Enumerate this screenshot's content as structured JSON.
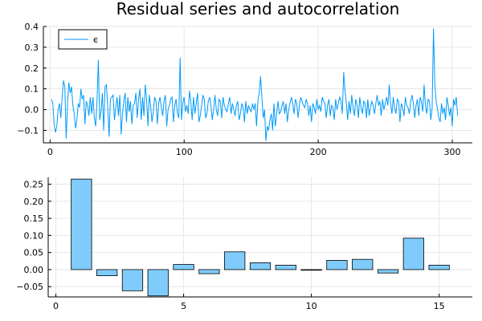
{
  "title": "Residual series and autocorrelation",
  "chart_data": [
    {
      "type": "line",
      "title": "Residual series and autocorrelation",
      "xlabel": "",
      "ylabel": "",
      "xlim": [
        -5,
        315
      ],
      "ylim": [
        -0.16,
        0.4
      ],
      "xticks": [
        0,
        100,
        200,
        300
      ],
      "xtick_labels": [
        "0",
        "100",
        "200",
        "300"
      ],
      "yticks": [
        -0.1,
        0.0,
        0.1,
        0.2,
        0.3,
        0.4
      ],
      "ytick_labels": [
        "−0.1",
        "0.0",
        "0.1",
        "0.2",
        "0.3",
        "0.4"
      ],
      "grid": true,
      "legend_position": "top-left",
      "series": [
        {
          "name": "ϵ",
          "color": "#009af9",
          "x_start": 1,
          "x_step": 1,
          "values": [
            0.05,
            0.03,
            -0.07,
            -0.11,
            -0.08,
            0.0,
            0.03,
            -0.04,
            0.06,
            0.14,
            0.11,
            -0.14,
            0.03,
            0.13,
            0.08,
            0.11,
            0.02,
            -0.02,
            -0.09,
            -0.05,
            0.03,
            0.01,
            0.1,
            0.05,
            0.07,
            -0.07,
            0.04,
            0.02,
            -0.03,
            0.06,
            -0.02,
            0.06,
            -0.04,
            -0.08,
            0.04,
            0.24,
            -0.05,
            -0.01,
            0.08,
            -0.1,
            0.11,
            0.12,
            0.01,
            -0.13,
            0.05,
            0.06,
            0.07,
            -0.05,
            0.01,
            0.06,
            -0.03,
            0.07,
            -0.12,
            -0.02,
            0.04,
            0.08,
            -0.06,
            0.06,
            -0.01,
            0.04,
            -0.07,
            0.02,
            0.03,
            0.08,
            -0.04,
            0.05,
            0.1,
            -0.05,
            0.06,
            -0.03,
            0.12,
            0.05,
            -0.08,
            0.07,
            0.02,
            -0.06,
            -0.01,
            0.06,
            0.04,
            -0.07,
            0.03,
            0.06,
            0.01,
            -0.03,
            0.04,
            0.07,
            -0.08,
            0.0,
            0.02,
            0.05,
            0.06,
            -0.06,
            0.02,
            0.05,
            -0.02,
            -0.04,
            0.25,
            -0.05,
            0.03,
            0.06,
            -0.01,
            0.02,
            -0.02,
            0.09,
            0.04,
            -0.05,
            0.06,
            -0.02,
            0.03,
            0.08,
            -0.06,
            -0.03,
            0.02,
            0.07,
            0.05,
            -0.04,
            -0.02,
            0.04,
            0.06,
            0.02,
            -0.05,
            0.0,
            0.07,
            0.0,
            -0.03,
            0.05,
            0.04,
            -0.04,
            0.06,
            0.02,
            0.0,
            -0.01,
            0.03,
            0.06,
            -0.02,
            0.03,
            0.0,
            -0.03,
            0.02,
            0.04,
            -0.05,
            -0.02,
            0.03,
            0.01,
            -0.06,
            0.04,
            -0.02,
            0.02,
            0.0,
            -0.01,
            0.03,
            0.0,
            0.03,
            -0.08,
            0.04,
            0.08,
            0.16,
            0.06,
            -0.04,
            0.0,
            -0.15,
            -0.08,
            -0.1,
            -0.05,
            -0.02,
            -0.1,
            0.03,
            -0.08,
            -0.02,
            0.04,
            -0.02,
            -0.01,
            0.02,
            0.04,
            -0.02,
            0.03,
            -0.06,
            0.0,
            0.03,
            0.06,
            0.03,
            -0.02,
            0.05,
            0.03,
            -0.04,
            0.02,
            0.06,
            0.04,
            0.02,
            0.01,
            0.05,
            0.03,
            -0.03,
            0.02,
            -0.06,
            0.03,
            0.01,
            -0.02,
            0.05,
            0.0,
            0.02,
            -0.01,
            0.06,
            0.04,
            0.03,
            -0.04,
            0.02,
            0.05,
            -0.03,
            0.02,
            0.01,
            -0.05,
            0.05,
            0.0,
            0.03,
            0.06,
            0.04,
            -0.02,
            0.18,
            0.09,
            0.03,
            -0.05,
            0.04,
            -0.02,
            0.07,
            0.01,
            -0.03,
            0.05,
            0.02,
            -0.04,
            0.06,
            0.01,
            -0.02,
            0.04,
            0.03,
            -0.04,
            0.05,
            -0.03,
            0.01,
            0.04,
            0.02,
            -0.02,
            0.03,
            0.07,
            0.02,
            0.04,
            -0.03,
            0.05,
            0.0,
            0.03,
            0.06,
            0.02,
            0.12,
            0.03,
            -0.02,
            0.06,
            0.01,
            -0.02,
            0.05,
            0.04,
            -0.06,
            0.03,
            0.01,
            -0.03,
            0.06,
            0.02,
            0.01,
            -0.02,
            0.04,
            0.07,
            0.03,
            -0.04,
            0.02,
            0.05,
            -0.03,
            0.06,
            0.04,
            -0.01,
            0.12,
            0.02,
            -0.02,
            0.05,
            0.04,
            -0.05,
            0.01,
            0.39,
            0.12,
            0.04,
            0.0,
            -0.04,
            -0.06,
            0.03,
            -0.02,
            0.01,
            -0.05,
            0.06,
            0.02,
            -0.03,
            0.01,
            -0.08,
            0.05,
            0.02,
            0.06,
            -0.03
          ]
        }
      ]
    },
    {
      "type": "bar",
      "xlabel": "",
      "ylabel": "",
      "xlim": [
        -0.3,
        16.3
      ],
      "ylim": [
        -0.08,
        0.27
      ],
      "xticks": [
        0,
        5,
        10,
        15
      ],
      "xtick_labels": [
        "0",
        "5",
        "10",
        "15"
      ],
      "yticks": [
        -0.05,
        0.0,
        0.05,
        0.1,
        0.15,
        0.2,
        0.25
      ],
      "ytick_labels": [
        "−0.05",
        "0.00",
        "0.05",
        "0.10",
        "0.15",
        "0.20",
        "0.25"
      ],
      "grid": true,
      "color": "#7fccfc",
      "bar_width": 0.8,
      "categories": [
        1,
        2,
        3,
        4,
        5,
        6,
        7,
        8,
        9,
        10,
        11,
        12,
        13,
        14,
        15
      ],
      "values": [
        0.265,
        -0.018,
        -0.062,
        -0.077,
        0.015,
        -0.012,
        0.052,
        0.02,
        0.013,
        -0.002,
        0.027,
        0.03,
        -0.01,
        0.092,
        0.013
      ]
    }
  ]
}
